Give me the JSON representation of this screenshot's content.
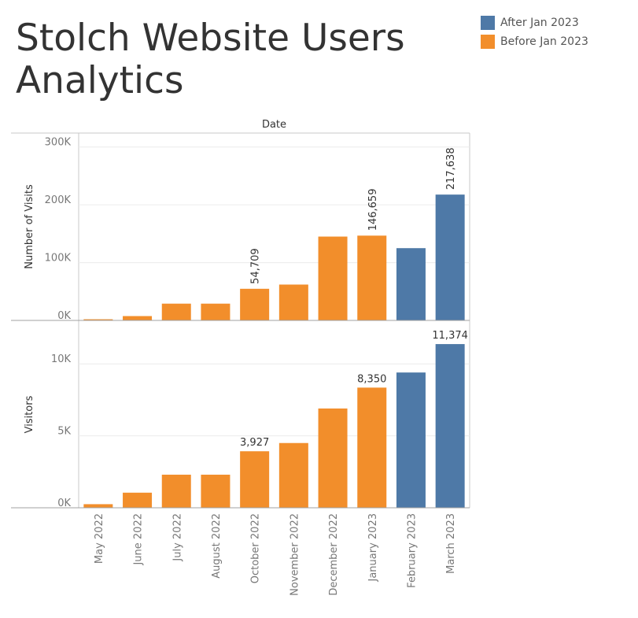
{
  "title": "Stolch Website Users Analytics",
  "legend": [
    {
      "label": "After Jan 2023",
      "color": "#4e79a7"
    },
    {
      "label": "Before Jan 2023",
      "color": "#f28e2b"
    }
  ],
  "chart_data": {
    "type": "bar",
    "header": "Date",
    "categories": [
      "May 2022",
      "June 2022",
      "July 2022",
      "August 2022",
      "October 2022",
      "November 2022",
      "December 2022",
      "January 2023",
      "February 2023",
      "March 2023"
    ],
    "groups": [
      "Before Jan 2023",
      "Before Jan 2023",
      "Before Jan 2023",
      "Before Jan 2023",
      "Before Jan 2023",
      "Before Jan 2023",
      "Before Jan 2023",
      "Before Jan 2023",
      "After Jan 2023",
      "After Jan 2023"
    ],
    "panels": [
      {
        "ylabel": "Number of Visits",
        "ylim": [
          0,
          320000
        ],
        "ticks": [
          0,
          100000,
          200000,
          300000
        ],
        "tick_labels": [
          "0K",
          "100K",
          "200K",
          "300K"
        ],
        "values": [
          2000,
          7500,
          29000,
          29000,
          54709,
          62000,
          145000,
          146659,
          125000,
          217638
        ],
        "data_labels": [
          null,
          null,
          null,
          null,
          "54,709",
          null,
          null,
          "146,659",
          null,
          "217,638"
        ],
        "label_rotation": "vertical"
      },
      {
        "ylabel": "Visitors",
        "ylim": [
          0,
          12800
        ],
        "ticks": [
          0,
          5000,
          10000
        ],
        "tick_labels": [
          "0K",
          "5K",
          "10K"
        ],
        "values": [
          250,
          1050,
          2300,
          2300,
          3927,
          4500,
          6900,
          8350,
          9400,
          11374
        ],
        "data_labels": [
          null,
          null,
          null,
          null,
          "3,927",
          null,
          null,
          "8,350",
          null,
          "11,374"
        ],
        "label_rotation": "horizontal"
      }
    ],
    "grid": true,
    "legend_position": "top-right"
  }
}
